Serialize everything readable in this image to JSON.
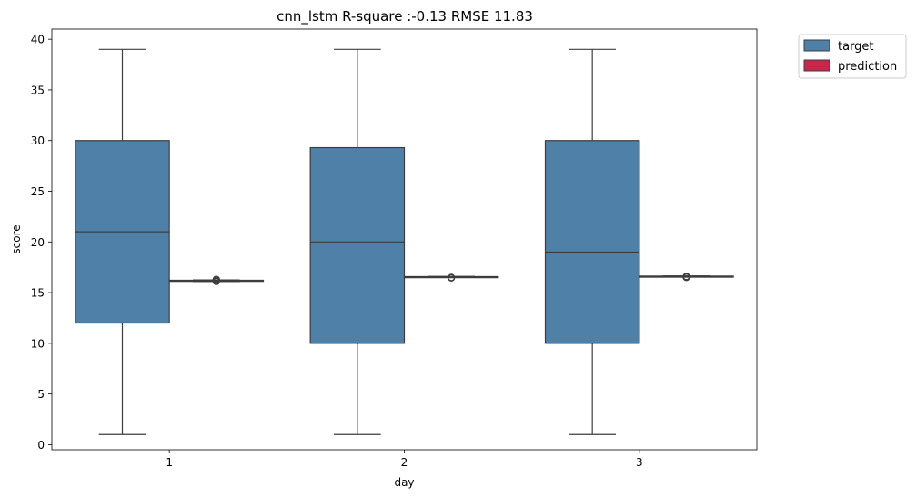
{
  "chart_data": {
    "type": "box",
    "title": "cnn_lstm R-square :-0.13 RMSE 11.83",
    "xlabel": "day",
    "ylabel": "score",
    "categories": [
      "1",
      "2",
      "3"
    ],
    "ylim": [
      -0.5,
      41
    ],
    "yticks": [
      0,
      5,
      10,
      15,
      20,
      25,
      30,
      35,
      40
    ],
    "ytick_labels": [
      "0",
      "5",
      "10",
      "15",
      "20",
      "25",
      "30",
      "35",
      "40"
    ],
    "grid": false,
    "legend_position": "outside top-right",
    "series": [
      {
        "name": "target",
        "color": "#4f81a8",
        "boxes": [
          {
            "whisker_low": 1,
            "q1": 12,
            "median": 21,
            "q3": 30,
            "whisker_high": 39,
            "outliers": []
          },
          {
            "whisker_low": 1,
            "q1": 10,
            "median": 20,
            "q3": 29.3,
            "whisker_high": 39,
            "outliers": []
          },
          {
            "whisker_low": 1,
            "q1": 10,
            "median": 19,
            "q3": 30,
            "whisker_high": 39,
            "outliers": []
          }
        ]
      },
      {
        "name": "prediction",
        "color": "#c9264c",
        "boxes": [
          {
            "whisker_low": 16.1,
            "q1": 16.15,
            "median": 16.18,
            "q3": 16.22,
            "whisker_high": 16.25,
            "outliers": [
              16.1,
              16.2,
              16.3
            ]
          },
          {
            "whisker_low": 16.5,
            "q1": 16.52,
            "median": 16.55,
            "q3": 16.58,
            "whisker_high": 16.6,
            "outliers": [
              16.45,
              16.5
            ]
          },
          {
            "whisker_low": 16.55,
            "q1": 16.58,
            "median": 16.6,
            "q3": 16.63,
            "whisker_high": 16.65,
            "outliers": [
              16.5,
              16.55,
              16.6
            ]
          }
        ]
      }
    ]
  }
}
